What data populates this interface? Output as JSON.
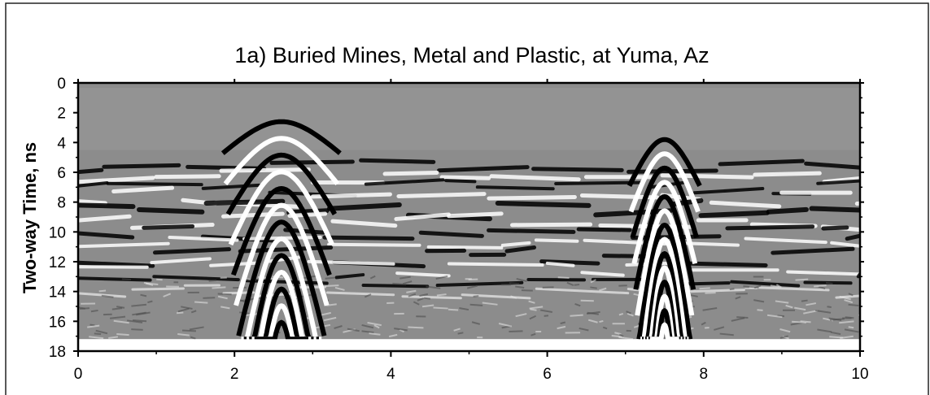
{
  "chart_data": {
    "type": "heatmap",
    "title": "1a) Buried Mines, Metal and Plastic, at Yuma, Az",
    "ylabel": "Two-way  Time, ns",
    "xlabel": "",
    "xlim": [
      0,
      10
    ],
    "ylim": [
      0,
      18
    ],
    "y_inverted": true,
    "x_ticks": [
      "0",
      "2",
      "4",
      "6",
      "8",
      "10"
    ],
    "y_ticks": [
      "0",
      "2",
      "4",
      "6",
      "8",
      "10",
      "12",
      "14",
      "16",
      "18"
    ],
    "colormap": "grayscale",
    "colors": {
      "background": "#ffffff",
      "plot_gray": "#8c8c8c",
      "positive": "#ffffff",
      "negative": "#000000"
    },
    "hyperbolas": [
      {
        "apex_x": 2.6,
        "apex_t": 2.6,
        "bottom_t": 17.2
      },
      {
        "apex_x": 7.5,
        "apex_t": 3.8,
        "bottom_t": 17.2
      }
    ],
    "reflector_bands_t": [
      6.2,
      7.6,
      9.6,
      12.0,
      13.6
    ]
  }
}
